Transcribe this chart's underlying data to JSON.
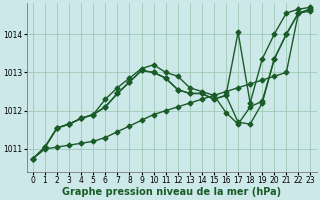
{
  "xlabel": "Graphe pression niveau de la mer (hPa)",
  "ylim": [
    1010.4,
    1014.8
  ],
  "xlim": [
    -0.5,
    23.5
  ],
  "yticks": [
    1011,
    1012,
    1013,
    1014
  ],
  "xticks": [
    0,
    1,
    2,
    3,
    4,
    5,
    6,
    7,
    8,
    9,
    10,
    11,
    12,
    13,
    14,
    15,
    16,
    17,
    18,
    19,
    20,
    21,
    22,
    23
  ],
  "bg_color": "#cde8e8",
  "grid_color": "#a0c8b8",
  "line_color": "#1a5c28",
  "series": [
    {
      "x": [
        0,
        1,
        2,
        3,
        4,
        5,
        6,
        7,
        8,
        9,
        10,
        11,
        12,
        13,
        14,
        15,
        16,
        17,
        18,
        19,
        20,
        21,
        22,
        23
      ],
      "y": [
        1010.75,
        1011.0,
        1011.05,
        1011.1,
        1011.15,
        1011.2,
        1011.3,
        1011.45,
        1011.6,
        1011.75,
        1011.9,
        1012.0,
        1012.1,
        1012.2,
        1012.3,
        1012.4,
        1012.5,
        1012.6,
        1012.7,
        1012.8,
        1012.9,
        1013.0,
        1014.55,
        1014.6
      ]
    },
    {
      "x": [
        0,
        1,
        2,
        3,
        4,
        5,
        6,
        7,
        8,
        9,
        10,
        11,
        12,
        13,
        14,
        15,
        16,
        17,
        18,
        19,
        20,
        21,
        22,
        23
      ],
      "y": [
        1010.75,
        1011.05,
        1011.55,
        1011.65,
        1011.8,
        1011.9,
        1012.3,
        1012.6,
        1012.85,
        1013.1,
        1013.2,
        1013.0,
        1012.9,
        1012.6,
        1012.5,
        1012.4,
        1011.95,
        1011.65,
        1012.1,
        1012.25,
        1013.35,
        1014.0,
        1014.55,
        1014.65
      ]
    },
    {
      "x": [
        0,
        1,
        2,
        3,
        4,
        5,
        6,
        7,
        8,
        9,
        10,
        11,
        12,
        13,
        14,
        15,
        16,
        17,
        18,
        19,
        20,
        21,
        22,
        23
      ],
      "y": [
        1010.75,
        1011.05,
        1011.55,
        1011.65,
        1011.8,
        1011.9,
        1012.1,
        1012.45,
        1012.75,
        1013.05,
        1013.0,
        1012.85,
        1012.55,
        1012.45,
        1012.45,
        1012.3,
        1012.4,
        1011.7,
        1011.65,
        1012.2,
        1013.35,
        1014.0,
        1014.55,
        1014.65
      ]
    },
    {
      "x": [
        1,
        2,
        3,
        4,
        5,
        6,
        7,
        8,
        9,
        10,
        11,
        12,
        13,
        14,
        15,
        16,
        17,
        18,
        19,
        20,
        21,
        22,
        23
      ],
      "y": [
        1011.05,
        1011.55,
        1011.65,
        1011.8,
        1011.9,
        1012.1,
        1012.45,
        1012.75,
        1013.05,
        1013.0,
        1012.85,
        1012.55,
        1012.45,
        1012.45,
        1012.3,
        1012.4,
        1014.05,
        1012.2,
        1013.35,
        1014.0,
        1014.55,
        1014.65,
        1014.7
      ]
    }
  ],
  "marker": "D",
  "markersize": 2.5,
  "linewidth": 1.0,
  "tick_fontsize": 5.5,
  "label_fontsize": 7.0
}
